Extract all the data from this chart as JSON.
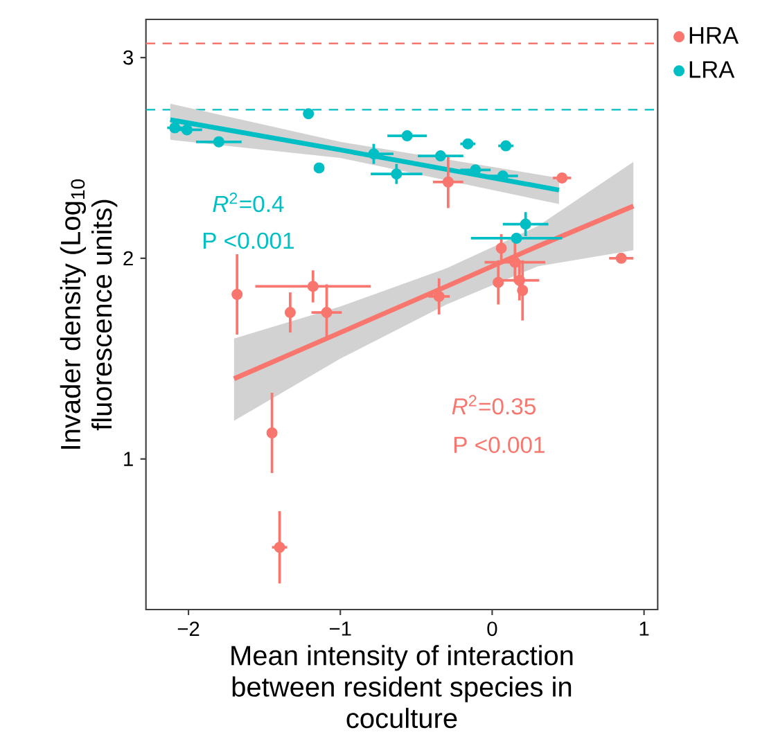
{
  "chart_data": {
    "type": "scatter",
    "xlabel": "Mean intensity of interaction between resident species in coculture",
    "ylabel": "Invader density (Log$_{10}$ fluorescence units)",
    "xlim": [
      -2.28,
      1.09
    ],
    "ylim": [
      0.25,
      3.19
    ],
    "xticks": [
      {
        "value": -2,
        "label": "−2"
      },
      {
        "value": -1,
        "label": "−1"
      },
      0,
      1
    ],
    "yticks": [
      1,
      2,
      3
    ],
    "grid": false,
    "legend": "top right",
    "series": [
      {
        "name": "HRA",
        "marker": "circle",
        "color": "#f8766d",
        "x": [
          -1.68,
          -1.33,
          -1.18,
          -1.09,
          -1.45,
          -1.4,
          -0.35,
          -0.29,
          0.06,
          0.04,
          0.15,
          0.18,
          0.2,
          0.46,
          0.85
        ],
        "values": [
          1.82,
          1.73,
          1.86,
          1.73,
          1.13,
          0.56,
          1.81,
          2.38,
          2.05,
          1.88,
          1.98,
          1.89,
          1.84,
          2.4,
          2.0
        ],
        "errors": [
          0.2,
          0.1,
          0.08,
          0.14,
          0.2,
          0.18,
          0.09,
          0.13,
          0.07,
          0.11,
          0.1,
          0.1,
          0.15,
          null,
          null
        ],
        "xerrors": [
          null,
          null,
          0.38,
          0.1,
          null,
          0.05,
          0.07,
          0.1,
          null,
          null,
          0.2,
          0.13,
          null,
          0.06,
          0.08
        ]
      },
      {
        "name": "LRA",
        "marker": "circle",
        "color": "#00bfc4",
        "x": [
          -2.09,
          -2.01,
          -1.8,
          -1.21,
          -1.14,
          -0.78,
          -0.63,
          -0.56,
          -0.34,
          -0.16,
          -0.11,
          0.09,
          0.07,
          0.16,
          0.22
        ],
        "values": [
          2.65,
          2.64,
          2.58,
          2.72,
          2.45,
          2.52,
          2.42,
          2.61,
          2.51,
          2.57,
          2.44,
          2.56,
          2.41,
          2.1,
          2.17
        ],
        "errors": [
          null,
          null,
          null,
          null,
          null,
          0.05,
          0.05,
          null,
          null,
          null,
          null,
          null,
          null,
          null,
          0.06
        ],
        "xerrors": [
          0.05,
          0.1,
          0.15,
          null,
          null,
          0.13,
          0.17,
          0.13,
          0.15,
          0.05,
          0.1,
          0.05,
          0.1,
          0.3,
          0.15
        ]
      },
      {
        "type": "line",
        "marker": "none",
        "color": "#f8766d",
        "x": [
          -1.7,
          -1.0,
          -0.3,
          0.3,
          0.93
        ],
        "values": [
          1.4,
          1.63,
          1.86,
          2.06,
          2.26
        ],
        "lower": [
          1.19,
          1.5,
          1.77,
          1.96,
          2.04
        ],
        "upper": [
          1.6,
          1.76,
          1.95,
          2.16,
          2.48
        ]
      },
      {
        "type": "line",
        "marker": "none",
        "color": "#00bfc4",
        "x": [
          -2.12,
          -1.0,
          0.44
        ],
        "values": [
          2.69,
          2.54,
          2.34
        ],
        "lower": [
          2.59,
          2.5,
          2.27
        ],
        "upper": [
          2.77,
          2.58,
          2.4
        ]
      }
    ],
    "ref_lines": [
      {
        "axis": "y",
        "value": 3.07,
        "color": "#f8766d",
        "line_style": "dashed"
      },
      {
        "axis": "y",
        "value": 2.74,
        "color": "#00bfc4",
        "line_style": "dashed"
      }
    ],
    "annotations": [
      "*R*$^{2}$=0.4",
      "P <0.001",
      "*R*$^{2}$=0.35",
      "P <0.001"
    ]
  }
}
